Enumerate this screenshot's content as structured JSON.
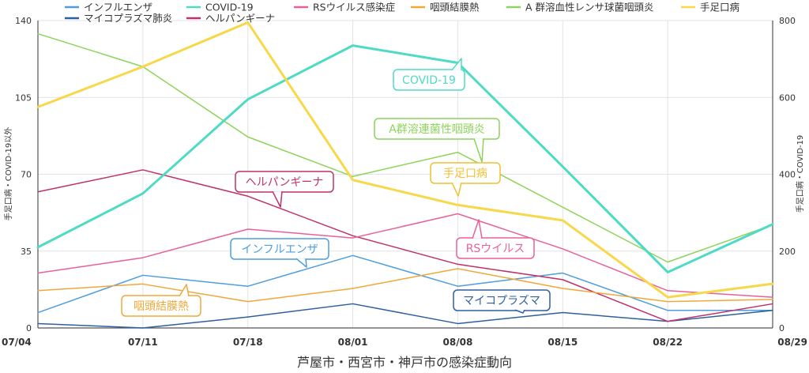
{
  "chart_data": {
    "type": "line",
    "title": "",
    "xlabel": "芦屋市・西宮市・神戸市の感染症動向",
    "ylabel_left": "手足口病・COVID-19以外",
    "ylabel_right": "手足口病・COVID-19",
    "x": [
      "07/04",
      "07/11",
      "07/18",
      "08/01",
      "08/08",
      "08/15",
      "08/22",
      "08/29"
    ],
    "ylim_left": [
      0,
      140
    ],
    "ylim_right": [
      0,
      800
    ],
    "yticks_left": [
      "0",
      "35",
      "70",
      "105",
      "140"
    ],
    "yticks_right": [
      "0",
      "200",
      "400",
      "600",
      "800"
    ],
    "grid": true,
    "legend_position": "top",
    "series": [
      {
        "name": "インフルエンザ",
        "axis": "left",
        "color": "#4d9de0",
        "width": 1.5,
        "values": [
          7,
          24,
          19,
          33,
          19,
          25,
          8,
          8
        ]
      },
      {
        "name": "マイコプラズマ肺炎",
        "axis": "left",
        "color": "#2e5fa0",
        "width": 1.5,
        "values": [
          2,
          0,
          5,
          11,
          2,
          7,
          3,
          8
        ]
      },
      {
        "name": "COVID-19",
        "axis": "right",
        "color": "#4edbc4",
        "width": 3,
        "values": [
          210,
          350,
          595,
          735,
          690,
          420,
          145,
          270
        ]
      },
      {
        "name": "ヘルパンギーナ",
        "axis": "left",
        "color": "#c0306a",
        "width": 1.5,
        "values": [
          62,
          72,
          60,
          42,
          29,
          22,
          3,
          11
        ]
      },
      {
        "name": "RSウイルス感染症",
        "axis": "left",
        "color": "#e8609a",
        "width": 1.5,
        "values": [
          25,
          32,
          45,
          41,
          52,
          36,
          17,
          14
        ]
      },
      {
        "name": "咽頭結膜熱",
        "axis": "left",
        "color": "#f0a83a",
        "width": 1.5,
        "values": [
          17,
          20,
          12,
          18,
          27,
          18,
          12,
          13
        ]
      },
      {
        "name": "A 群溶血性レンサ球菌咽頭炎",
        "axis": "left",
        "color": "#8cd45a",
        "width": 1.5,
        "values": [
          134,
          119,
          87,
          69,
          80,
          55,
          30,
          47
        ]
      },
      {
        "name": "手足口病",
        "axis": "right",
        "color": "#f7d84a",
        "width": 3,
        "values": [
          575,
          680,
          795,
          385,
          320,
          280,
          80,
          115
        ]
      }
    ],
    "annotations": [
      {
        "text": "COVID-19",
        "color": "#4edbc4"
      },
      {
        "text": "A群溶連菌性咽頭炎",
        "color": "#8cd45a"
      },
      {
        "text": "手足口病",
        "color": "#f0c030"
      },
      {
        "text": "ヘルパンギーナ",
        "color": "#c0306a"
      },
      {
        "text": "RSウイルス",
        "color": "#e8609a"
      },
      {
        "text": "インフルエンザ",
        "color": "#4d9de0"
      },
      {
        "text": "咽頭結膜熱",
        "color": "#f0a83a"
      },
      {
        "text": "マイコプラズマ",
        "color": "#2e5fa0"
      }
    ]
  }
}
